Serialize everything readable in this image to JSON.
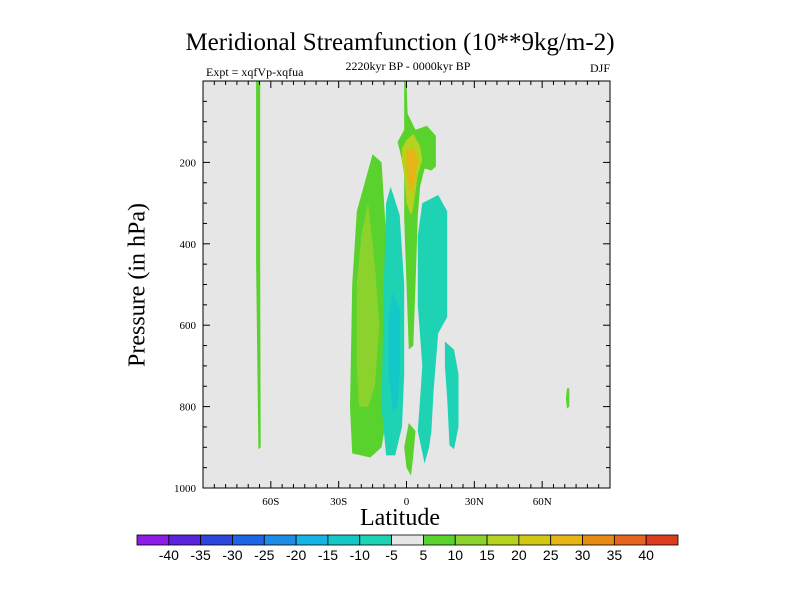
{
  "chart_data": {
    "type": "heatmap",
    "title": "Meridional Streamfunction (10**9kg/m-2)",
    "subtitle_left": "Expt = xqfVp-xqfua",
    "subtitle_center": "2220kyr BP - 0000kyr BP",
    "subtitle_right": "DJF",
    "xlabel": "Latitude",
    "ylabel": "Pressure (in hPa)",
    "xlim": [
      -90,
      90
    ],
    "ylim": [
      1000,
      0
    ],
    "x_ticks": [
      {
        "value": -60,
        "label": "60S"
      },
      {
        "value": -30,
        "label": "30S"
      },
      {
        "value": 0,
        "label": "0"
      },
      {
        "value": 30,
        "label": "30N"
      },
      {
        "value": 60,
        "label": "60N"
      }
    ],
    "y_ticks": [
      {
        "value": 200,
        "label": "200"
      },
      {
        "value": 400,
        "label": "400"
      },
      {
        "value": 600,
        "label": "600"
      },
      {
        "value": 800,
        "label": "800"
      },
      {
        "value": 1000,
        "label": "1000"
      }
    ],
    "background_color": "#e6e6e6",
    "contour_levels": [
      -40,
      -35,
      -30,
      -25,
      -20,
      -15,
      -10,
      -5,
      5,
      10,
      15,
      20,
      25,
      30,
      35,
      40
    ],
    "colorbar": {
      "labels": [
        "-40",
        "-35",
        "-30",
        "-25",
        "-20",
        "-15",
        "-10",
        "-5",
        "5",
        "10",
        "15",
        "20",
        "25",
        "30",
        "35",
        "40"
      ],
      "colors": [
        "#8c1ce6",
        "#5a23dc",
        "#2d46dc",
        "#1e64e6",
        "#1e8ce6",
        "#14b4e6",
        "#14c8c8",
        "#1ed2b4",
        "#e6e6e6",
        "#5ad22d",
        "#8cd22d",
        "#b4d21e",
        "#d2c814",
        "#e6b414",
        "#e68c14",
        "#e6641e",
        "#dc3c1e"
      ]
    },
    "regions": [
      {
        "name": "band-60S",
        "color": "#5ad22d",
        "points": [
          [
            -66.5,
            0
          ],
          [
            -64.7,
            0
          ],
          [
            -64.7,
            450
          ],
          [
            -64.5,
            900
          ],
          [
            -65.5,
            905
          ],
          [
            -66.5,
            450
          ]
        ]
      },
      {
        "name": "sh-positive-outer",
        "color": "#5ad22d",
        "points": [
          [
            -15,
            180
          ],
          [
            -11,
            200
          ],
          [
            -9,
            380
          ],
          [
            -7,
            600
          ],
          [
            -8,
            800
          ],
          [
            -11,
            900
          ],
          [
            -16,
            925
          ],
          [
            -24,
            915
          ],
          [
            -25,
            800
          ],
          [
            -24,
            500
          ],
          [
            -22,
            320
          ]
        ]
      },
      {
        "name": "sh-positive-inner",
        "color": "#8cd22d",
        "points": [
          [
            -17,
            300
          ],
          [
            -14,
            450
          ],
          [
            -12,
            600
          ],
          [
            -14,
            750
          ],
          [
            -17,
            800
          ],
          [
            -21,
            800
          ],
          [
            -22,
            700
          ],
          [
            -22,
            500
          ],
          [
            -20,
            380
          ]
        ]
      },
      {
        "name": "eq-negative-outer",
        "color": "#1ed2b4",
        "points": [
          [
            -7,
            260
          ],
          [
            -3,
            330
          ],
          [
            -1,
            500
          ],
          [
            -1,
            720
          ],
          [
            -2,
            850
          ],
          [
            -5,
            920
          ],
          [
            -9,
            920
          ],
          [
            -11,
            800
          ],
          [
            -10,
            500
          ],
          [
            -9,
            300
          ]
        ]
      },
      {
        "name": "eq-negative-inner",
        "color": "#14c8c8",
        "points": [
          [
            -6,
            520
          ],
          [
            -3,
            560
          ],
          [
            -3,
            720
          ],
          [
            -4,
            800
          ],
          [
            -6,
            810
          ],
          [
            -8,
            720
          ],
          [
            -8,
            580
          ]
        ]
      },
      {
        "name": "nh-negative-outer",
        "color": "#1ed2b4",
        "points": [
          [
            7,
            300
          ],
          [
            14,
            280
          ],
          [
            18,
            320
          ],
          [
            18,
            580
          ],
          [
            14,
            620
          ],
          [
            12,
            760
          ],
          [
            11,
            860
          ],
          [
            10,
            900
          ],
          [
            8,
            940
          ],
          [
            5,
            860
          ],
          [
            6,
            780
          ],
          [
            7,
            700
          ],
          [
            5,
            550
          ],
          [
            5,
            380
          ]
        ]
      },
      {
        "name": "nh-negative-lower",
        "color": "#1ed2b4",
        "points": [
          [
            17,
            640
          ],
          [
            21,
            660
          ],
          [
            23,
            720
          ],
          [
            23,
            850
          ],
          [
            21,
            905
          ],
          [
            19,
            895
          ],
          [
            18,
            780
          ],
          [
            17,
            700
          ]
        ]
      },
      {
        "name": "eq-positive-tongue",
        "color": "#5ad22d",
        "points": [
          [
            1,
            840
          ],
          [
            4,
            860
          ],
          [
            3,
            920
          ],
          [
            2,
            970
          ],
          [
            0,
            950
          ],
          [
            -1,
            900
          ]
        ]
      },
      {
        "name": "upper-jet-outer",
        "color": "#5ad22d",
        "points": [
          [
            -1,
            0
          ],
          [
            0,
            0
          ],
          [
            0.5,
            80
          ],
          [
            4,
            120
          ],
          [
            9,
            110
          ],
          [
            13,
            135
          ],
          [
            13,
            210
          ],
          [
            11,
            220
          ],
          [
            8,
            215
          ],
          [
            6,
            260
          ],
          [
            5,
            330
          ],
          [
            4,
            500
          ],
          [
            3,
            650
          ],
          [
            1,
            660
          ],
          [
            0,
            500
          ],
          [
            -1,
            340
          ],
          [
            -1,
            220
          ],
          [
            -3,
            170
          ],
          [
            -4,
            150
          ],
          [
            -1,
            120
          ],
          [
            -1,
            50
          ]
        ]
      },
      {
        "name": "upper-jet-mid",
        "color": "#b4d21e",
        "points": [
          [
            -2,
            165
          ],
          [
            0,
            145
          ],
          [
            3,
            130
          ],
          [
            6,
            160
          ],
          [
            7,
            195
          ],
          [
            5,
            230
          ],
          [
            3,
            310
          ],
          [
            2,
            330
          ],
          [
            0,
            300
          ],
          [
            -1,
            230
          ],
          [
            -2,
            200
          ]
        ]
      },
      {
        "name": "upper-jet-core",
        "color": "#e6b414",
        "points": [
          [
            0,
            170
          ],
          [
            3,
            165
          ],
          [
            5,
            190
          ],
          [
            4,
            230
          ],
          [
            3,
            270
          ],
          [
            1,
            265
          ],
          [
            0,
            215
          ]
        ]
      },
      {
        "name": "dot-70N",
        "color": "#5ad22d",
        "points": [
          [
            71,
            755
          ],
          [
            72,
            755
          ],
          [
            72,
            800
          ],
          [
            71,
            805
          ],
          [
            70.5,
            780
          ]
        ]
      }
    ]
  }
}
